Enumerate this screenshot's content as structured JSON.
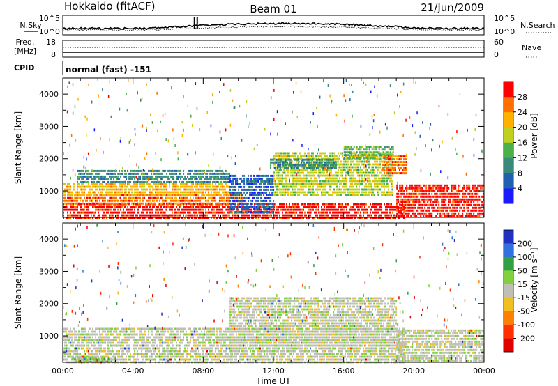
{
  "header": {
    "station": "Hokkaido (fitACF)",
    "beam": "Beam 01",
    "date": "21/Jun/2009"
  },
  "noise_panel": {
    "left_label": "N.Sky",
    "right_label": "N.Search",
    "left_ticks": [
      "10^5",
      "10^0"
    ],
    "right_ticks": [
      "10^5",
      "10^0"
    ]
  },
  "freq_panel": {
    "left_label_line1": "Freq.",
    "left_label_line2": "[MHz]",
    "left_ticks": [
      "18",
      "8"
    ],
    "right_label": "Nave",
    "right_ticks": [
      "60",
      "0"
    ]
  },
  "cpid": {
    "label": "CPID",
    "value": "normal (fast) -151"
  },
  "chart_data": [
    {
      "type": "heatmap",
      "quantity": "Power",
      "ylabel": "Slant Range [km]",
      "ylim": [
        180,
        4500
      ],
      "yticks": [
        "1000",
        "2000",
        "3000",
        "4000"
      ],
      "xlim_hours": [
        0,
        24
      ],
      "colorbar": {
        "label": "Power [dB]",
        "ticks": [
          "4",
          "8",
          "12",
          "16",
          "20",
          "24",
          "28"
        ],
        "colors": [
          "#1a1aff",
          "#2060b0",
          "#3a8a7a",
          "#4ab04a",
          "#c0d020",
          "#ffb000",
          "#ff7000",
          "#ff0000"
        ]
      },
      "regions": [
        {
          "start": 0,
          "end": 19.4,
          "r_min": 180,
          "r_max": 620,
          "level": 7
        },
        {
          "start": 0,
          "end": 10.2,
          "r_min": 620,
          "r_max": 900,
          "level": 6
        },
        {
          "start": 0,
          "end": 9.5,
          "r_min": 900,
          "r_max": 1250,
          "level": 5
        },
        {
          "start": 0.8,
          "end": 9.5,
          "r_min": 1250,
          "r_max": 1650,
          "level": 2
        },
        {
          "start": 9.5,
          "end": 12.0,
          "r_min": 300,
          "r_max": 1500,
          "level": 1
        },
        {
          "start": 12.0,
          "end": 18.8,
          "r_min": 900,
          "r_max": 2200,
          "level": 4
        },
        {
          "start": 11.8,
          "end": 15.6,
          "r_min": 1700,
          "r_max": 2000,
          "level": 2
        },
        {
          "start": 16.0,
          "end": 18.8,
          "r_min": 2000,
          "r_max": 2400,
          "level": 3
        },
        {
          "start": 18.2,
          "end": 19.6,
          "r_min": 1500,
          "r_max": 2100,
          "level": 6
        },
        {
          "start": 19.0,
          "end": 24,
          "r_min": 180,
          "r_max": 1200,
          "level": 7
        }
      ]
    },
    {
      "type": "heatmap",
      "quantity": "Velocity",
      "ylabel": "Slant Range [km]",
      "ylim": [
        180,
        4500
      ],
      "yticks": [
        "1000",
        "2000",
        "3000",
        "4000"
      ],
      "xlim_hours": [
        0,
        24
      ],
      "xlabel": "Time UT",
      "xticks": [
        "00:00",
        "04:00",
        "08:00",
        "12:00",
        "16:00",
        "20:00",
        "00:00"
      ],
      "colorbar": {
        "label": "Velocity [m s⁻¹]",
        "ticks": [
          "200",
          "100",
          "50",
          "15",
          "-15",
          "-50",
          "-100",
          "-200"
        ],
        "colors": [
          "#2030c0",
          "#3070e0",
          "#30a040",
          "#80d040",
          "#bfbfb5",
          "#f0c020",
          "#ff8000",
          "#ff3000",
          "#e00000"
        ]
      },
      "regions": [
        {
          "start": 0,
          "end": 19.4,
          "r_min": 180,
          "r_max": 1250,
          "level": 4
        },
        {
          "start": 9.5,
          "end": 19.0,
          "r_min": 700,
          "r_max": 2200,
          "level": 4
        },
        {
          "start": 19.0,
          "end": 24,
          "r_min": 180,
          "r_max": 1200,
          "level": 4
        },
        {
          "start": 0.5,
          "end": 3.0,
          "r_min": 180,
          "r_max": 320,
          "level": 3
        }
      ]
    }
  ]
}
